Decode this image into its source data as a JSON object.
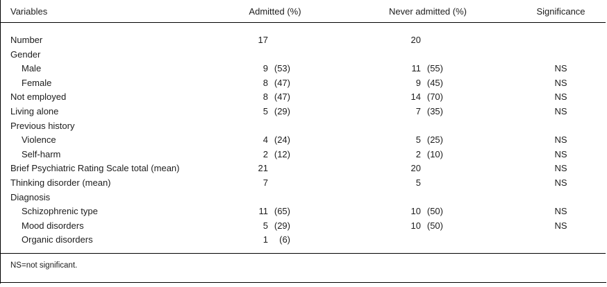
{
  "table": {
    "columns": [
      "Variables",
      "Admitted (%)",
      "Never admitted (%)",
      "Significance"
    ],
    "rows": [
      {
        "label": "Number",
        "indent": 0,
        "admitted_n": "17",
        "admitted_pct": "",
        "never_n": "20",
        "never_pct": "",
        "sig": ""
      },
      {
        "label": "Gender",
        "indent": 0,
        "admitted_n": "",
        "admitted_pct": "",
        "never_n": "",
        "never_pct": "",
        "sig": ""
      },
      {
        "label": "Male",
        "indent": 1,
        "admitted_n": "9",
        "admitted_pct": "(53)",
        "never_n": "11",
        "never_pct": "(55)",
        "sig": "NS"
      },
      {
        "label": "Female",
        "indent": 1,
        "admitted_n": "8",
        "admitted_pct": "(47)",
        "never_n": "9",
        "never_pct": "(45)",
        "sig": "NS"
      },
      {
        "label": "Not employed",
        "indent": 0,
        "admitted_n": "8",
        "admitted_pct": "(47)",
        "never_n": "14",
        "never_pct": "(70)",
        "sig": "NS"
      },
      {
        "label": "Living alone",
        "indent": 0,
        "admitted_n": "5",
        "admitted_pct": "(29)",
        "never_n": "7",
        "never_pct": "(35)",
        "sig": "NS"
      },
      {
        "label": "Previous history",
        "indent": 0,
        "admitted_n": "",
        "admitted_pct": "",
        "never_n": "",
        "never_pct": "",
        "sig": ""
      },
      {
        "label": "Violence",
        "indent": 1,
        "admitted_n": "4",
        "admitted_pct": "(24)",
        "never_n": "5",
        "never_pct": "(25)",
        "sig": "NS"
      },
      {
        "label": "Self-harm",
        "indent": 1,
        "admitted_n": "2",
        "admitted_pct": "(12)",
        "never_n": "2",
        "never_pct": "(10)",
        "sig": "NS"
      },
      {
        "label": "Brief Psychiatric Rating Scale total (mean)",
        "indent": 0,
        "admitted_n": "21",
        "admitted_pct": "",
        "never_n": "20",
        "never_pct": "",
        "sig": "NS"
      },
      {
        "label": "Thinking disorder (mean)",
        "indent": 0,
        "admitted_n": "7",
        "admitted_pct": "",
        "never_n": "5",
        "never_pct": "",
        "sig": "NS"
      },
      {
        "label": "Diagnosis",
        "indent": 0,
        "admitted_n": "",
        "admitted_pct": "",
        "never_n": "",
        "never_pct": "",
        "sig": ""
      },
      {
        "label": "Schizophrenic type",
        "indent": 1,
        "admitted_n": "11",
        "admitted_pct": "(65)",
        "never_n": "10",
        "never_pct": "(50)",
        "sig": "NS"
      },
      {
        "label": "Mood disorders",
        "indent": 1,
        "admitted_n": "5",
        "admitted_pct": "(29)",
        "never_n": "10",
        "never_pct": "(50)",
        "sig": "NS"
      },
      {
        "label": "Organic disorders",
        "indent": 1,
        "admitted_n": "1",
        "admitted_pct": "(6)",
        "never_n": "",
        "never_pct": "",
        "sig": ""
      }
    ],
    "footnote": "NS=not significant."
  },
  "colors": {
    "text": "#1c1c1c",
    "rule": "#000000",
    "background": "#ffffff"
  }
}
